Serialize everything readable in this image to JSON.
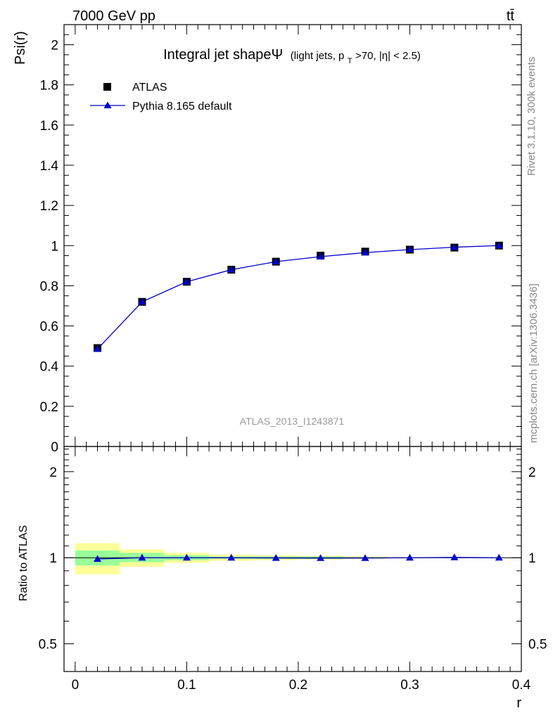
{
  "header": {
    "energy_label": "7000 GeV pp",
    "process_label": "tt̄"
  },
  "side_labels": {
    "rivet": "Rivet 3.1.10,  300k events",
    "source": "mcplots.cern.ch [arXiv:1306.3436]"
  },
  "colors": {
    "data": "#000000",
    "mc": "#0000cc",
    "band_inner": "#99ff99",
    "band_outer": "#ffff99",
    "watermark": "#999999"
  },
  "chart_data": [
    {
      "type": "line",
      "panel": "main",
      "title_main": "Integral jet shapeΨ",
      "title_sub_pre": "(light jets, p",
      "title_sub_subscript": "T",
      "title_sub_post": ">70, |η| < 2.5)",
      "ylabel": "Psi(r)",
      "xlabel": "",
      "xlim": [
        -0.01,
        0.4
      ],
      "ylim": [
        0,
        2.1
      ],
      "yticks": [
        0,
        0.2,
        0.4,
        0.6,
        0.8,
        1,
        1.2,
        1.4,
        1.6,
        1.8,
        2
      ],
      "ytick_labels": [
        "0",
        "0.2",
        "0.4",
        "0.6",
        "0.8",
        "1",
        "1.2",
        "1.4",
        "1.6",
        "1.8",
        "2"
      ],
      "watermark": "ATLAS_2013_I1243871",
      "legend_position": "top-left",
      "x": [
        0.02,
        0.06,
        0.1,
        0.14,
        0.18,
        0.22,
        0.26,
        0.3,
        0.34,
        0.38
      ],
      "series": [
        {
          "name": "ATLAS",
          "marker": "square",
          "values": [
            0.49,
            0.72,
            0.82,
            0.88,
            0.92,
            0.95,
            0.97,
            0.98,
            0.99,
            1.0
          ]
        },
        {
          "name": "Pythia 8.165 default",
          "marker": "triangle",
          "values": [
            0.485,
            0.72,
            0.82,
            0.88,
            0.92,
            0.945,
            0.965,
            0.98,
            0.992,
            1.0
          ]
        }
      ]
    },
    {
      "type": "line",
      "panel": "ratio",
      "ylabel": "Ratio to ATLAS",
      "xlabel": "r",
      "xlim": [
        -0.01,
        0.4
      ],
      "ylim": [
        0.4,
        2.45
      ],
      "yscale": "log",
      "yticks": [
        0.5,
        1,
        2
      ],
      "ytick_labels": [
        "0.5",
        "1",
        "2"
      ],
      "xticks": [
        0,
        0.1,
        0.2,
        0.3,
        0.4
      ],
      "xtick_labels": [
        "0",
        "0.1",
        "0.2",
        "0.3",
        "0.4"
      ],
      "x": [
        0.02,
        0.06,
        0.1,
        0.14,
        0.18,
        0.22,
        0.26,
        0.3,
        0.34,
        0.38
      ],
      "series": [
        {
          "name": "Pythia 8.165 default",
          "marker": "triangle",
          "values": [
            0.99,
            1.0,
            1.0,
            1.0,
            0.998,
            0.997,
            0.997,
            1.0,
            1.003,
            1.0
          ]
        }
      ],
      "bands": {
        "bin_edges": [
          0.0,
          0.04,
          0.08,
          0.12,
          0.16,
          0.2,
          0.24,
          0.28,
          0.32,
          0.36,
          0.4
        ],
        "inner_lo": [
          0.94,
          0.965,
          0.98,
          0.99,
          0.99,
          0.99,
          0.995,
          0.998,
          0.999,
          1.0
        ],
        "inner_hi": [
          1.06,
          1.04,
          1.02,
          1.01,
          1.01,
          1.01,
          1.005,
          1.002,
          1.001,
          1.0
        ],
        "outer_lo": [
          0.875,
          0.93,
          0.96,
          0.975,
          0.98,
          0.985,
          0.99,
          0.995,
          0.998,
          1.0
        ],
        "outer_hi": [
          1.125,
          1.07,
          1.04,
          1.025,
          1.02,
          1.015,
          1.01,
          1.005,
          1.002,
          1.0
        ]
      }
    }
  ]
}
